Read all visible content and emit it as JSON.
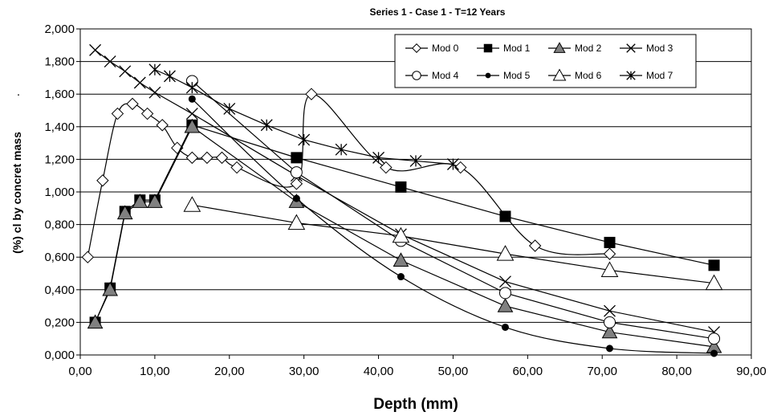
{
  "chart_data": {
    "type": "line",
    "title": "Series 1 - Case 1 - T=12 Years",
    "xlabel": "Depth (mm)",
    "ylabel": "(%) cl by concret mass",
    "ylabel_mark": "·",
    "xlim": [
      0,
      90
    ],
    "ylim": [
      0,
      2
    ],
    "x_ticks": [
      0,
      10,
      20,
      30,
      40,
      50,
      60,
      70,
      80,
      90
    ],
    "x_tick_labels": [
      "0,00",
      "10,00",
      "20,00",
      "30,00",
      "40,00",
      "50,00",
      "60,00",
      "70,00",
      "80,00",
      "90,00"
    ],
    "y_ticks": [
      0,
      0.2,
      0.4,
      0.6,
      0.8,
      1.0,
      1.2,
      1.4,
      1.6,
      1.8,
      2.0
    ],
    "y_tick_labels": [
      "0,000",
      "0,200",
      "0,400",
      "0,600",
      "0,800",
      "1,000",
      "1,200",
      "1,400",
      "1,600",
      "1,800",
      "2,000"
    ],
    "grid": "horizontal",
    "legend_position": "top-right",
    "series": [
      {
        "name": "Mod 0",
        "marker": "diamond",
        "curve": "smooth",
        "x": [
          1,
          3,
          5,
          7,
          9,
          11,
          13,
          15,
          17,
          19,
          21,
          29,
          31,
          41,
          51,
          61,
          71
        ],
        "y": [
          0.6,
          1.07,
          1.48,
          1.54,
          1.48,
          1.41,
          1.27,
          1.21,
          1.21,
          1.21,
          1.15,
          1.05,
          1.6,
          1.15,
          1.15,
          0.67,
          0.62
        ]
      },
      {
        "name": "Mod 1",
        "marker": "square",
        "curve": "straight",
        "x": [
          2,
          4,
          6,
          8,
          10,
          15,
          29,
          43,
          57,
          71,
          85
        ],
        "y": [
          0.2,
          0.41,
          0.88,
          0.95,
          0.95,
          1.41,
          1.21,
          1.03,
          0.85,
          0.69,
          0.55
        ]
      },
      {
        "name": "Mod 2",
        "marker": "triangle-filled",
        "curve": "straight",
        "x": [
          2,
          4,
          6,
          8,
          10,
          15,
          29,
          43,
          57,
          71,
          85
        ],
        "y": [
          0.2,
          0.4,
          0.87,
          0.94,
          0.94,
          1.4,
          0.94,
          0.58,
          0.3,
          0.14,
          0.05
        ]
      },
      {
        "name": "Mod 3",
        "marker": "x",
        "curve": "straight",
        "x": [
          2,
          4,
          6,
          8,
          10,
          15,
          29,
          43,
          57,
          71,
          85
        ],
        "y": [
          1.87,
          1.8,
          1.74,
          1.67,
          1.61,
          1.48,
          1.1,
          0.74,
          0.45,
          0.27,
          0.14
        ]
      },
      {
        "name": "Mod 4",
        "marker": "circle-open",
        "curve": "straight",
        "x": [
          15,
          29,
          43,
          57,
          71,
          85
        ],
        "y": [
          1.68,
          1.12,
          0.7,
          0.38,
          0.2,
          0.1
        ]
      },
      {
        "name": "Mod 5",
        "marker": "circle-filled",
        "curve": "smooth",
        "x": [
          15,
          29,
          43,
          57,
          71,
          85
        ],
        "y": [
          1.57,
          0.96,
          0.48,
          0.17,
          0.04,
          0.01
        ]
      },
      {
        "name": "Mod 6",
        "marker": "triangle-open",
        "curve": "straight",
        "x": [
          15,
          29,
          43,
          57,
          71,
          85
        ],
        "y": [
          0.92,
          0.81,
          0.73,
          0.62,
          0.52,
          0.44
        ]
      },
      {
        "name": "Mod 7",
        "marker": "asterisk",
        "curve": "straight",
        "x": [
          10,
          12,
          15,
          20,
          25,
          30,
          35,
          40,
          45,
          50
        ],
        "y": [
          1.75,
          1.71,
          1.64,
          1.51,
          1.41,
          1.32,
          1.26,
          1.21,
          1.19,
          1.17
        ]
      }
    ]
  }
}
